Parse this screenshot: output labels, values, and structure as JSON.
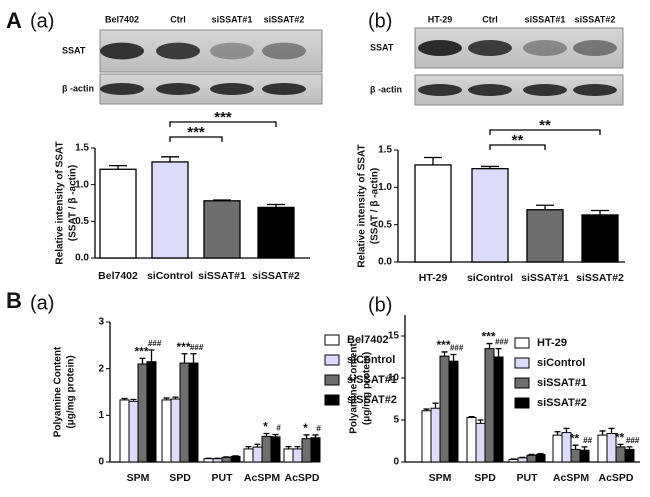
{
  "sections": [
    "A",
    "B"
  ],
  "blots": [
    {
      "lanes": [
        "Bel7402",
        "Ctrl",
        "siSSAT#1",
        "siSSAT#2"
      ],
      "rows": [
        "SSAT",
        "β -actin"
      ]
    },
    {
      "lanes": [
        "HT-29",
        "Ctrl",
        "siSSAT#1",
        "siSSAT#2"
      ],
      "rows": [
        "SSAT",
        "β -actin"
      ]
    }
  ],
  "chart_data": [
    {
      "type": "bar",
      "label": "(a)",
      "categories": [
        "Bel7402",
        "siControl",
        "siSSAT#1",
        "siSSAT#2"
      ],
      "values": [
        1.21,
        1.31,
        0.78,
        0.69
      ],
      "errors": [
        0.05,
        0.07,
        0.01,
        0.04
      ],
      "colors": [
        "#ffffff",
        "#dcdcfa",
        "#6e6e6e",
        "#000000"
      ],
      "ylim": [
        0,
        1.5
      ],
      "yticks": [
        {
          "value": 0,
          "label": "0.0"
        },
        0.5,
        {
          "value": 1,
          "label": "1.0"
        },
        1.5
      ],
      "ylabel": [
        "Relative intensity of SSAT",
        "(SSAT / β -actin)"
      ],
      "annotations": [
        "***",
        "***"
      ]
    },
    {
      "type": "bar",
      "label": "(b)",
      "categories": [
        "HT-29",
        "siControl",
        "siSSAT#1",
        "siSSAT#2"
      ],
      "values": [
        1.3,
        1.25,
        0.7,
        0.63
      ],
      "errors": [
        0.1,
        0.03,
        0.06,
        0.06
      ],
      "colors": [
        "#ffffff",
        "#dcdcfa",
        "#6e6e6e",
        "#000000"
      ],
      "ylim": [
        0,
        1.5
      ],
      "yticks": [
        {
          "value": 0,
          "label": "0.0"
        },
        0.5,
        {
          "value": 1,
          "label": "1.0"
        },
        1.5
      ],
      "ylabel": [
        "Relative intensity of SSAT",
        "(SSAT / β -actin)"
      ],
      "annotations": [
        "**",
        "**"
      ]
    },
    {
      "type": "grouped_bar",
      "label": "(a)",
      "categories": [
        "SPM",
        "SPD",
        "PUT",
        "AcSPM",
        "AcSPD"
      ],
      "series": [
        {
          "name": "Bel7402",
          "color": "#ffffff",
          "values": [
            1.33,
            1.33,
            0.07,
            0.28,
            0.28
          ],
          "errors": [
            0.03,
            0.04,
            0.01,
            0.05,
            0.05
          ]
        },
        {
          "name": "siControl",
          "color": "#dcdcfa",
          "values": [
            1.3,
            1.35,
            0.07,
            0.32,
            0.28
          ],
          "errors": [
            0.04,
            0.04,
            0.01,
            0.06,
            0.05
          ]
        },
        {
          "name": "siSSAT#1",
          "color": "#6e6e6e",
          "values": [
            2.1,
            2.12,
            0.1,
            0.55,
            0.5
          ],
          "errors": [
            0.12,
            0.2,
            0.01,
            0.06,
            0.08
          ],
          "annotations": [
            "***",
            "***",
            null,
            "*",
            "*"
          ]
        },
        {
          "name": "siSSAT#2",
          "color": "#000000",
          "values": [
            2.15,
            2.12,
            0.12,
            0.54,
            0.52
          ],
          "errors": [
            0.25,
            0.2,
            0.01,
            0.05,
            0.06
          ],
          "annotations": [
            "###",
            "###",
            null,
            "#",
            "#"
          ]
        }
      ],
      "ylim": [
        0,
        3
      ],
      "yticks": [
        0,
        1,
        2,
        3
      ],
      "ylabel": [
        "Polyamine Content",
        "(μg/mg protein)"
      ],
      "legend": "upper right"
    },
    {
      "type": "grouped_bar",
      "label": "(b)",
      "categories": [
        "SPM",
        "SPD",
        "PUT",
        "AcSPM",
        "AcSPD"
      ],
      "series": [
        {
          "name": "HT-29",
          "color": "#ffffff",
          "values": [
            6.1,
            5.3,
            0.3,
            3.2,
            3.2
          ],
          "errors": [
            0.2,
            0.1,
            0.05,
            0.4,
            0.5
          ]
        },
        {
          "name": "siControl",
          "color": "#dcdcfa",
          "values": [
            6.4,
            4.6,
            0.5,
            3.5,
            3.4
          ],
          "errors": [
            0.6,
            0.4,
            0.05,
            0.5,
            0.6
          ]
        },
        {
          "name": "siSSAT#1",
          "color": "#6e6e6e",
          "values": [
            12.6,
            13.5,
            0.8,
            1.5,
            1.8
          ],
          "errors": [
            0.5,
            0.6,
            0.1,
            0.5,
            0.3
          ],
          "annotations": [
            "***",
            "***",
            null,
            "**",
            "**"
          ]
        },
        {
          "name": "siSSAT#2",
          "color": "#000000",
          "values": [
            12.0,
            12.5,
            0.9,
            1.4,
            1.5
          ],
          "errors": [
            0.8,
            1.0,
            0.1,
            0.4,
            0.3
          ],
          "annotations": [
            "###",
            "###",
            null,
            "##",
            "###"
          ]
        }
      ],
      "ylim": [
        0,
        17.5
      ],
      "yticks": [
        0,
        5,
        10,
        15
      ],
      "ylabel": [
        "Polyamine Content",
        "(μg/mg protein)"
      ],
      "legend": "upper right"
    }
  ]
}
